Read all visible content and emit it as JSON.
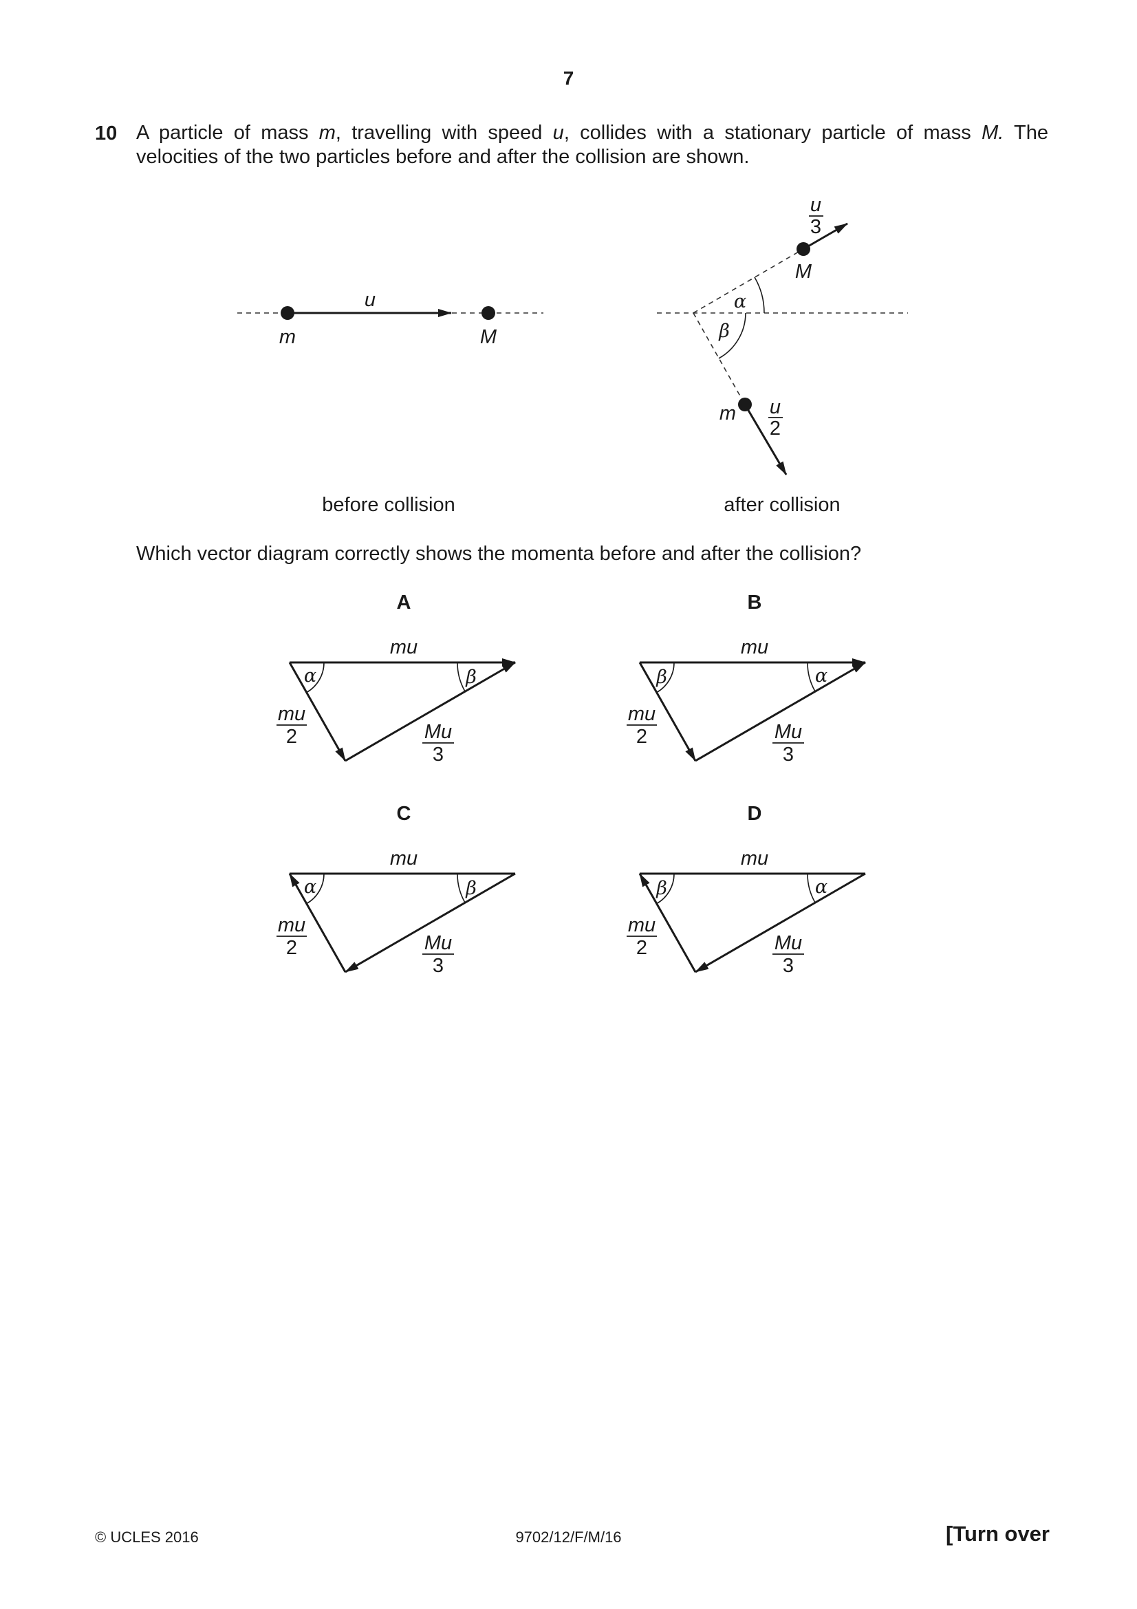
{
  "page": {
    "number": "7"
  },
  "question": {
    "number": "10",
    "line1": [
      {
        "t": "A particle of mass ",
        "i": false
      },
      {
        "t": "m",
        "i": true
      },
      {
        "t": ", travelling with speed ",
        "i": false
      },
      {
        "t": "u",
        "i": true
      },
      {
        "t": ", collides with a stationary particle of mass ",
        "i": false
      },
      {
        "t": "M.",
        "i": true
      },
      {
        "t": " The",
        "i": false
      }
    ],
    "line2": "velocities of the two particles before and after the collision are shown.",
    "prompt": "Which vector diagram correctly shows the momenta before and after the collision?"
  },
  "figure": {
    "before": {
      "caption": "before collision",
      "velocity_label": "u",
      "mass_m": "m",
      "mass_M": "M"
    },
    "after": {
      "caption": "after collision",
      "M_label": "M",
      "m_label": "m",
      "alpha": "α",
      "beta": "β",
      "u3_num": "u",
      "u3_den": "3",
      "u2_num": "u",
      "u2_den": "2"
    }
  },
  "options": [
    {
      "letter": "A",
      "top": "mu",
      "left_num": "mu",
      "left_den": "2",
      "right_num": "Mu",
      "right_den": "3",
      "left_angle": "α",
      "right_angle": "β"
    },
    {
      "letter": "B",
      "top": "mu",
      "left_num": "mu",
      "left_den": "2",
      "right_num": "Mu",
      "right_den": "3",
      "left_angle": "β",
      "right_angle": "α"
    },
    {
      "letter": "C",
      "top": "mu",
      "left_num": "mu",
      "left_den": "2",
      "right_num": "Mu",
      "right_den": "3",
      "left_angle": "α",
      "right_angle": "β"
    },
    {
      "letter": "D",
      "top": "mu",
      "left_num": "mu",
      "left_den": "2",
      "right_num": "Mu",
      "right_den": "3",
      "left_angle": "β",
      "right_angle": "α"
    }
  ],
  "footer": {
    "copyright": "© UCLES 2016",
    "code": "9702/12/F/M/16",
    "turn": "[Turn over"
  }
}
